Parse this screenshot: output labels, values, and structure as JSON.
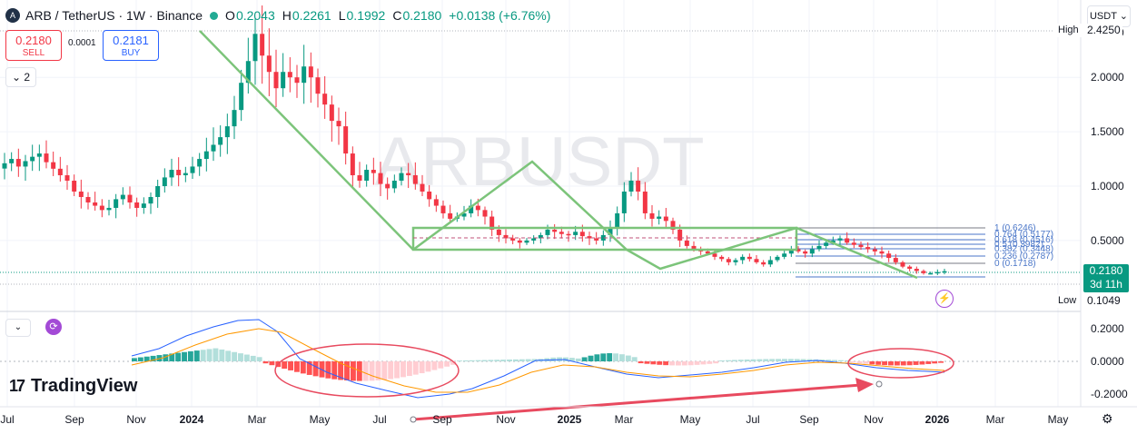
{
  "header": {
    "symbol": "ARB / TetherUS · 1W · Binance",
    "open_label": "O",
    "open": "0.2043",
    "high_label": "H",
    "high": "0.2261",
    "low_label": "L",
    "low": "0.1992",
    "close_label": "C",
    "close": "0.2180",
    "change": "+0.0138 (+6.76%)",
    "coin_icon": "arb-coin-icon"
  },
  "trade": {
    "sell_price": "0.2180",
    "sell_label": "SELL",
    "spread": "0.0001",
    "buy_price": "0.2181",
    "buy_label": "BUY"
  },
  "toolbar": {
    "collapse_label": "2",
    "currency": "USDT"
  },
  "watermark": "ARBUSDT",
  "brand": "TradingView",
  "price_axis": {
    "ticks": [
      "2.4250",
      "2.0000",
      "1.5000",
      "1.0000",
      "0.5000"
    ],
    "high_flag": "High",
    "high_value": "2.4250",
    "low_flag": "Low",
    "low_value": "0.1049",
    "current_price": "0.2180",
    "countdown": "3d 11h"
  },
  "macd_axis": {
    "ticks": [
      "0.2000",
      "0.0000",
      "-0.2000"
    ]
  },
  "time_axis": [
    "Jul",
    "Sep",
    "Nov",
    "2024",
    "Mar",
    "May",
    "Jul",
    "Sep",
    "Nov",
    "2025",
    "Mar",
    "May",
    "Jul",
    "Sep",
    "Nov",
    "2026",
    "Mar",
    "May"
  ],
  "fib_labels": [
    "1 (0.6246)",
    "0.764 (0.5177)",
    "0.618 (0.4516)",
    "0.5 (0.3982)",
    "0.382 (0.3448)",
    "0.236 (0.2787)",
    "0 (0.1718)"
  ],
  "colors": {
    "up": "#089981",
    "down": "#f23645",
    "drawing": "#7cc47a",
    "macd": "#2962ff",
    "signal": "#ff9800",
    "annot": "#e84a5f",
    "fib": "#4a76c8"
  },
  "chart_data": {
    "type": "candlestick",
    "interval": "1W",
    "x_range": [
      "Jul 2023",
      "May 2026"
    ],
    "y_range": [
      0.1049,
      2.425
    ],
    "weekly_close": [
      1.21,
      1.25,
      1.18,
      1.23,
      1.27,
      1.3,
      1.22,
      1.16,
      1.1,
      1.05,
      0.95,
      0.9,
      0.85,
      0.82,
      0.78,
      0.8,
      0.88,
      0.92,
      0.85,
      0.8,
      0.84,
      0.9,
      1.0,
      1.08,
      1.15,
      1.1,
      1.12,
      1.18,
      1.25,
      1.32,
      1.38,
      1.45,
      1.55,
      1.7,
      1.95,
      2.15,
      2.4,
      2.2,
      2.05,
      1.9,
      2.05,
      2.0,
      1.95,
      2.1,
      2.0,
      1.85,
      1.75,
      1.6,
      1.55,
      1.3,
      1.1,
      1.05,
      1.15,
      1.12,
      1.02,
      0.98,
      1.05,
      1.12,
      1.1,
      1.02,
      0.95,
      0.88,
      0.82,
      0.75,
      0.7,
      0.72,
      0.75,
      0.82,
      0.78,
      0.72,
      0.6,
      0.55,
      0.52,
      0.5,
      0.48,
      0.5,
      0.52,
      0.55,
      0.6,
      0.58,
      0.56,
      0.55,
      0.58,
      0.54,
      0.52,
      0.5,
      0.55,
      0.62,
      0.75,
      0.95,
      1.05,
      0.95,
      0.75,
      0.7,
      0.72,
      0.68,
      0.6,
      0.5,
      0.45,
      0.42,
      0.4,
      0.38,
      0.35,
      0.33,
      0.3,
      0.32,
      0.35,
      0.33,
      0.3,
      0.28,
      0.32,
      0.35,
      0.38,
      0.42,
      0.4,
      0.38,
      0.42,
      0.45,
      0.48,
      0.5,
      0.52,
      0.48,
      0.46,
      0.44,
      0.42,
      0.4,
      0.38,
      0.34,
      0.3,
      0.26,
      0.24,
      0.22,
      0.2,
      0.2,
      0.21,
      0.218
    ],
    "macd_range": [
      -0.2,
      0.2
    ],
    "fibonacci": [
      {
        "level": 1,
        "price": 0.6246
      },
      {
        "level": 0.764,
        "price": 0.5177
      },
      {
        "level": 0.618,
        "price": 0.4516
      },
      {
        "level": 0.5,
        "price": 0.3982
      },
      {
        "level": 0.382,
        "price": 0.3448
      },
      {
        "level": 0.236,
        "price": 0.2787
      },
      {
        "level": 0,
        "price": 0.1718
      }
    ]
  }
}
